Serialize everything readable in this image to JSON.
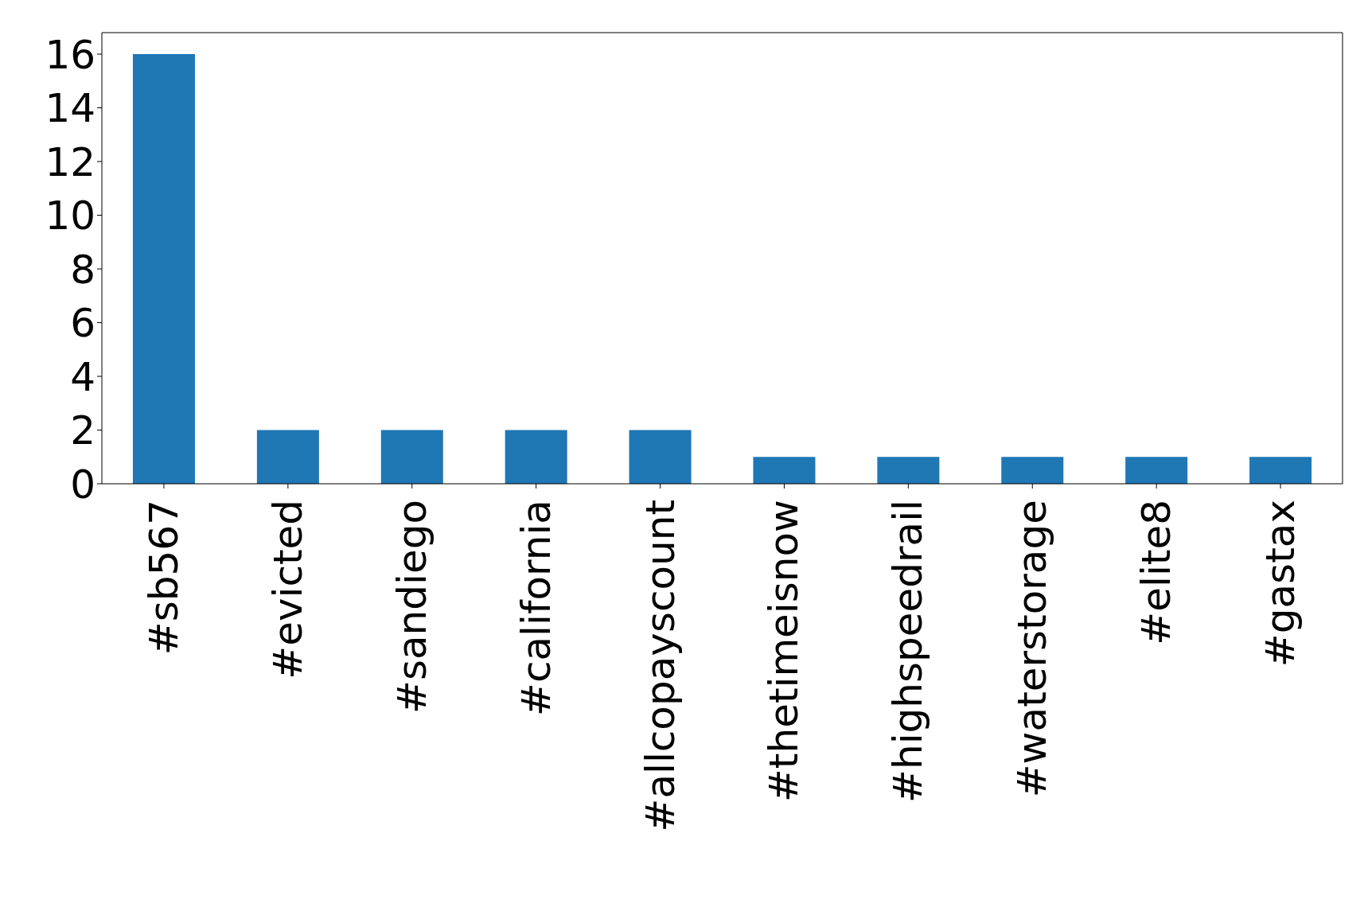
{
  "chart_data": {
    "type": "bar",
    "categories": [
      "#sb567",
      "#evicted",
      "#sandiego",
      "#california",
      "#allcopayscount",
      "#thetimeisnow",
      "#highspeedrail",
      "#waterstorage",
      "#elite8",
      "#gastax"
    ],
    "values": [
      16,
      2,
      2,
      2,
      2,
      1,
      1,
      1,
      1,
      1
    ],
    "color": "#1f77b4",
    "ylim": [
      0,
      16.8
    ],
    "yticks": [
      0,
      2,
      4,
      6,
      8,
      10,
      12,
      14,
      16
    ],
    "grid": false
  }
}
